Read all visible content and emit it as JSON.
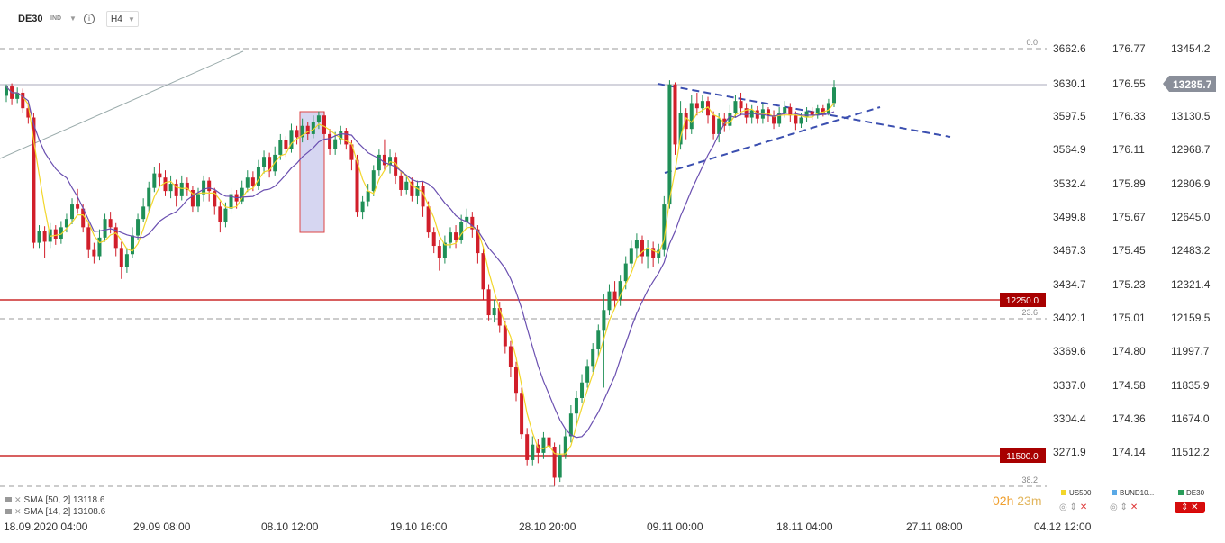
{
  "topbar": {
    "symbol": "DE30",
    "category": "IND",
    "timeframe": "H4",
    "info_icon": "info-icon",
    "caret_icon": "chevron-down-icon"
  },
  "chart_data": {
    "type": "candlestick",
    "instrument": "DE30",
    "timeframe": "H4",
    "price_axis": [
      "3662.6",
      "3630.1",
      "3597.5",
      "3564.9",
      "3532.4",
      "3499.8",
      "3467.3",
      "3434.7",
      "3402.1",
      "3369.6",
      "3337.0",
      "3304.4",
      "3271.9"
    ],
    "us500_axis": [
      "176.77",
      "176.55",
      "176.33",
      "176.11",
      "175.89",
      "175.67",
      "175.45",
      "175.23",
      "175.01",
      "174.80",
      "174.58",
      "174.36",
      "174.14"
    ],
    "de30_axis": [
      "13454.2",
      "13130.5",
      "12968.7",
      "12806.9",
      "12645.0",
      "12483.2",
      "12321.4",
      "12159.5",
      "11997.7",
      "11835.9",
      "11674.0",
      "11512.2"
    ],
    "x_labels": [
      "18.09.2020  04:00",
      "29.09  08:00",
      "08.10  12:00",
      "19.10  16:00",
      "28.10  20:00",
      "09.11  00:00",
      "18.11  04:00",
      "27.11  08:00",
      "04.12  12:00"
    ],
    "current_price": "13285.7",
    "levels": [
      {
        "label": "12250.0",
        "color": "#c00000"
      },
      {
        "label": "11500.0",
        "color": "#c00000"
      }
    ],
    "fibonacci": [
      {
        "label": "0.0"
      },
      {
        "label": "23.6"
      },
      {
        "label": "38.2"
      }
    ],
    "candles": [
      [
        3617,
        3626,
        3628,
        3611
      ],
      [
        3626,
        3614,
        3629,
        3608
      ],
      [
        3614,
        3620,
        3625,
        3610
      ],
      [
        3620,
        3605,
        3624,
        3600
      ],
      [
        3605,
        3596,
        3610,
        3590
      ],
      [
        3596,
        3475,
        3600,
        3470
      ],
      [
        3475,
        3486,
        3492,
        3470
      ],
      [
        3486,
        3476,
        3491,
        3460
      ],
      [
        3476,
        3488,
        3494,
        3470
      ],
      [
        3488,
        3479,
        3492,
        3473
      ],
      [
        3479,
        3490,
        3496,
        3474
      ],
      [
        3490,
        3498,
        3503,
        3485
      ],
      [
        3498,
        3512,
        3518,
        3493
      ],
      [
        3512,
        3508,
        3527,
        3503
      ],
      [
        3508,
        3490,
        3512,
        3485
      ],
      [
        3490,
        3468,
        3495,
        3460
      ],
      [
        3468,
        3462,
        3475,
        3455
      ],
      [
        3462,
        3480,
        3488,
        3458
      ],
      [
        3480,
        3498,
        3503,
        3476
      ],
      [
        3498,
        3490,
        3505,
        3484
      ],
      [
        3490,
        3470,
        3494,
        3462
      ],
      [
        3470,
        3452,
        3476,
        3440
      ],
      [
        3452,
        3464,
        3470,
        3446
      ],
      [
        3464,
        3482,
        3490,
        3460
      ],
      [
        3482,
        3498,
        3503,
        3478
      ],
      [
        3498,
        3510,
        3518,
        3495
      ],
      [
        3510,
        3528,
        3534,
        3505
      ],
      [
        3528,
        3542,
        3548,
        3524
      ],
      [
        3542,
        3538,
        3552,
        3530
      ],
      [
        3538,
        3525,
        3545,
        3520
      ],
      [
        3525,
        3532,
        3540,
        3518
      ],
      [
        3532,
        3520,
        3536,
        3510
      ],
      [
        3520,
        3533,
        3540,
        3516
      ],
      [
        3533,
        3526,
        3538,
        3520
      ],
      [
        3526,
        3510,
        3530,
        3505
      ],
      [
        3510,
        3522,
        3528,
        3505
      ],
      [
        3522,
        3535,
        3540,
        3515
      ],
      [
        3535,
        3525,
        3538,
        3515
      ],
      [
        3525,
        3510,
        3528,
        3502
      ],
      [
        3510,
        3495,
        3515,
        3485
      ],
      [
        3495,
        3508,
        3514,
        3490
      ],
      [
        3508,
        3522,
        3528,
        3503
      ],
      [
        3522,
        3515,
        3526,
        3508
      ],
      [
        3515,
        3528,
        3535,
        3512
      ],
      [
        3528,
        3538,
        3545,
        3524
      ],
      [
        3538,
        3530,
        3544,
        3525
      ],
      [
        3530,
        3548,
        3555,
        3526
      ],
      [
        3548,
        3558,
        3564,
        3542
      ],
      [
        3558,
        3544,
        3562,
        3538
      ],
      [
        3544,
        3560,
        3568,
        3540
      ],
      [
        3560,
        3574,
        3580,
        3555
      ],
      [
        3574,
        3566,
        3578,
        3558
      ],
      [
        3566,
        3584,
        3590,
        3562
      ],
      [
        3584,
        3577,
        3588,
        3570
      ],
      [
        3577,
        3588,
        3595,
        3572
      ],
      [
        3588,
        3580,
        3592,
        3574
      ],
      [
        3580,
        3592,
        3598,
        3576
      ],
      [
        3592,
        3598,
        3602,
        3585
      ],
      [
        3598,
        3580,
        3602,
        3575
      ],
      [
        3580,
        3566,
        3585,
        3560
      ],
      [
        3566,
        3575,
        3582,
        3560
      ],
      [
        3575,
        3583,
        3588,
        3570
      ],
      [
        3583,
        3570,
        3586,
        3565
      ],
      [
        3570,
        3555,
        3574,
        3545
      ],
      [
        3555,
        3505,
        3560,
        3500
      ],
      [
        3505,
        3515,
        3520,
        3498
      ],
      [
        3515,
        3525,
        3532,
        3510
      ],
      [
        3525,
        3545,
        3550,
        3520
      ],
      [
        3545,
        3560,
        3565,
        3540
      ],
      [
        3560,
        3550,
        3575,
        3545
      ],
      [
        3550,
        3558,
        3565,
        3542
      ],
      [
        3558,
        3540,
        3562,
        3532
      ],
      [
        3540,
        3526,
        3545,
        3520
      ],
      [
        3526,
        3534,
        3540,
        3522
      ],
      [
        3534,
        3520,
        3538,
        3515
      ],
      [
        3520,
        3530,
        3535,
        3512
      ],
      [
        3530,
        3510,
        3534,
        3500
      ],
      [
        3510,
        3485,
        3515,
        3480
      ],
      [
        3485,
        3472,
        3490,
        3465
      ],
      [
        3472,
        3460,
        3478,
        3448
      ],
      [
        3460,
        3475,
        3482,
        3455
      ],
      [
        3475,
        3485,
        3490,
        3470
      ],
      [
        3485,
        3478,
        3492,
        3470
      ],
      [
        3478,
        3495,
        3502,
        3474
      ],
      [
        3495,
        3500,
        3508,
        3490
      ],
      [
        3500,
        3488,
        3505,
        3480
      ],
      [
        3488,
        3465,
        3492,
        3455
      ],
      [
        3465,
        3430,
        3470,
        3420
      ],
      [
        3430,
        3405,
        3435,
        3400
      ],
      [
        3405,
        3412,
        3420,
        3398
      ],
      [
        3412,
        3395,
        3418,
        3388
      ],
      [
        3395,
        3375,
        3400,
        3368
      ],
      [
        3375,
        3355,
        3380,
        3345
      ],
      [
        3355,
        3330,
        3360,
        3322
      ],
      [
        3330,
        3290,
        3335,
        3285
      ],
      [
        3290,
        3265,
        3296,
        3260
      ],
      [
        3265,
        3280,
        3288,
        3260
      ],
      [
        3280,
        3272,
        3285,
        3262
      ],
      [
        3272,
        3287,
        3292,
        3266
      ],
      [
        3287,
        3278,
        3292,
        3268
      ],
      [
        3278,
        3248,
        3282,
        3240
      ],
      [
        3248,
        3270,
        3280,
        3244
      ],
      [
        3270,
        3288,
        3295,
        3266
      ],
      [
        3288,
        3310,
        3318,
        3282
      ],
      [
        3310,
        3325,
        3332,
        3300
      ],
      [
        3325,
        3340,
        3348,
        3320
      ],
      [
        3340,
        3356,
        3362,
        3335
      ],
      [
        3356,
        3372,
        3378,
        3350
      ],
      [
        3372,
        3390,
        3396,
        3365
      ],
      [
        3390,
        3410,
        3425,
        3335
      ],
      [
        3410,
        3428,
        3435,
        3405
      ],
      [
        3428,
        3420,
        3438,
        3412
      ],
      [
        3420,
        3438,
        3444,
        3414
      ],
      [
        3438,
        3455,
        3462,
        3430
      ],
      [
        3455,
        3470,
        3477,
        3450
      ],
      [
        3470,
        3478,
        3484,
        3460
      ],
      [
        3478,
        3462,
        3482,
        3455
      ],
      [
        3462,
        3470,
        3478,
        3450
      ],
      [
        3470,
        3460,
        3476,
        3452
      ],
      [
        3460,
        3468,
        3474,
        3455
      ],
      [
        3468,
        3512,
        3520,
        3462
      ],
      [
        3512,
        3628,
        3632,
        3508
      ],
      [
        3628,
        3570,
        3630,
        3560
      ],
      [
        3570,
        3600,
        3612,
        3565
      ],
      [
        3600,
        3585,
        3605,
        3575
      ],
      [
        3585,
        3610,
        3618,
        3580
      ],
      [
        3610,
        3605,
        3620,
        3598
      ],
      [
        3605,
        3612,
        3618,
        3600
      ],
      [
        3612,
        3598,
        3616,
        3590
      ],
      [
        3598,
        3580,
        3602,
        3575
      ],
      [
        3580,
        3595,
        3600,
        3572
      ],
      [
        3595,
        3588,
        3600,
        3582
      ],
      [
        3588,
        3600,
        3608,
        3584
      ],
      [
        3600,
        3612,
        3618,
        3596
      ],
      [
        3612,
        3605,
        3620,
        3598
      ],
      [
        3605,
        3596,
        3610,
        3590
      ],
      [
        3596,
        3603,
        3608,
        3590
      ],
      [
        3603,
        3595,
        3607,
        3590
      ],
      [
        3595,
        3604,
        3610,
        3590
      ],
      [
        3604,
        3598,
        3606,
        3592
      ],
      [
        3598,
        3590,
        3603,
        3585
      ],
      [
        3590,
        3600,
        3606,
        3587
      ],
      [
        3600,
        3606,
        3612,
        3596
      ],
      [
        3606,
        3598,
        3610,
        3592
      ],
      [
        3598,
        3590,
        3602,
        3584
      ],
      [
        3590,
        3596,
        3600,
        3586
      ],
      [
        3596,
        3602,
        3606,
        3592
      ],
      [
        3602,
        3598,
        3606,
        3594
      ],
      [
        3598,
        3605,
        3608,
        3595
      ],
      [
        3605,
        3600,
        3608,
        3597
      ],
      [
        3600,
        3610,
        3614,
        3598
      ],
      [
        3610,
        3625,
        3632,
        3606
      ]
    ],
    "sma": [
      {
        "name": "SMA [50, 2]",
        "value": "13118.6",
        "color": "#6a4fb0"
      },
      {
        "name": "SMA [14, 2]",
        "value": "13108.6",
        "color": "#f2d62a"
      }
    ]
  },
  "legend": {
    "sma50_label": "SMA  [50,  2]",
    "sma50_value": "13118.6",
    "sma14_label": "SMA  [14,  2]",
    "sma14_value": "13108.6"
  },
  "timer": {
    "hours": "02h",
    "minutes": "23m"
  },
  "instruments": [
    {
      "name": "US500",
      "color": "#f2d62a",
      "active": false
    },
    {
      "name": "BUND10...",
      "color": "#5aa9e6",
      "active": false
    },
    {
      "name": "DE30",
      "color": "#2a9d5a",
      "active": true
    }
  ]
}
